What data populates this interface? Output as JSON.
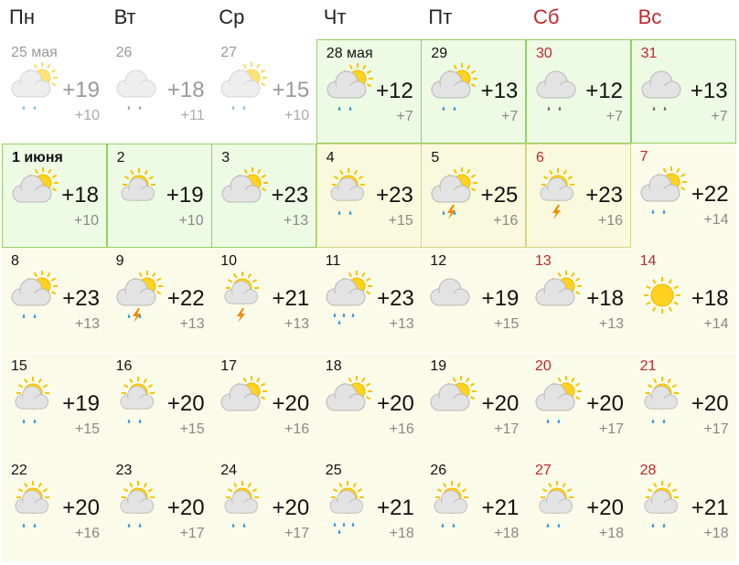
{
  "days": [
    "Пн",
    "Вт",
    "Ср",
    "Чт",
    "Пт",
    "Сб",
    "Вс"
  ],
  "weeks": [
    [
      {
        "date": "25 мая",
        "high": "+19",
        "low": "+10",
        "weather": "partly-rain"
      },
      {
        "date": "26",
        "high": "+18",
        "low": "+11",
        "weather": "cloud-rain"
      },
      {
        "date": "27",
        "high": "+15",
        "low": "+10",
        "weather": "partly-rain"
      },
      {
        "date": "28 мая",
        "high": "+12",
        "low": "+7",
        "weather": "partly-rain"
      },
      {
        "date": "29",
        "high": "+13",
        "low": "+7",
        "weather": "partly-rain"
      },
      {
        "date": "30",
        "high": "+12",
        "low": "+7",
        "weather": "cloud-rain"
      },
      {
        "date": "31",
        "high": "+13",
        "low": "+7",
        "weather": "cloud-rain"
      }
    ],
    [
      {
        "date": "1 июня",
        "high": "+18",
        "low": "+10",
        "weather": "partly"
      },
      {
        "date": "2",
        "high": "+19",
        "low": "+10",
        "weather": "sunny"
      },
      {
        "date": "3",
        "high": "+23",
        "low": "+13",
        "weather": "partly"
      },
      {
        "date": "4",
        "high": "+23",
        "low": "+15",
        "weather": "sunny-rain"
      },
      {
        "date": "5",
        "high": "+25",
        "low": "+16",
        "weather": "partly-storm"
      },
      {
        "date": "6",
        "high": "+23",
        "low": "+16",
        "weather": "sunny-storm"
      },
      {
        "date": "7",
        "high": "+22",
        "low": "+14",
        "weather": "partly-rain"
      }
    ],
    [
      {
        "date": "8",
        "high": "+23",
        "low": "+13",
        "weather": "partly-rain"
      },
      {
        "date": "9",
        "high": "+22",
        "low": "+13",
        "weather": "partly-storm"
      },
      {
        "date": "10",
        "high": "+21",
        "low": "+13",
        "weather": "sunny-storm"
      },
      {
        "date": "11",
        "high": "+23",
        "low": "+13",
        "weather": "partly-showers"
      },
      {
        "date": "12",
        "high": "+19",
        "low": "+15",
        "weather": "cloud"
      },
      {
        "date": "13",
        "high": "+18",
        "low": "+13",
        "weather": "partly"
      },
      {
        "date": "14",
        "high": "+18",
        "low": "+14",
        "weather": "sun"
      }
    ],
    [
      {
        "date": "15",
        "high": "+19",
        "low": "+15",
        "weather": "sunny-rain"
      },
      {
        "date": "16",
        "high": "+20",
        "low": "+15",
        "weather": "sunny-rain"
      },
      {
        "date": "17",
        "high": "+20",
        "low": "+16",
        "weather": "partly"
      },
      {
        "date": "18",
        "high": "+20",
        "low": "+16",
        "weather": "partly"
      },
      {
        "date": "19",
        "high": "+20",
        "low": "+17",
        "weather": "partly"
      },
      {
        "date": "20",
        "high": "+20",
        "low": "+17",
        "weather": "partly-rain"
      },
      {
        "date": "21",
        "high": "+20",
        "low": "+17",
        "weather": "sunny-rain"
      }
    ],
    [
      {
        "date": "22",
        "high": "+20",
        "low": "+16",
        "weather": "sunny-rain"
      },
      {
        "date": "23",
        "high": "+20",
        "low": "+17",
        "weather": "sunny-rain"
      },
      {
        "date": "24",
        "high": "+20",
        "low": "+17",
        "weather": "sunny-rain"
      },
      {
        "date": "25",
        "high": "+21",
        "low": "+18",
        "weather": "sunny-showers"
      },
      {
        "date": "26",
        "high": "+21",
        "low": "+18",
        "weather": "sunny-rain"
      },
      {
        "date": "27",
        "high": "+20",
        "low": "+18",
        "weather": "sunny-rain"
      },
      {
        "date": "28",
        "high": "+21",
        "low": "+18",
        "weather": "sunny-rain"
      }
    ]
  ]
}
